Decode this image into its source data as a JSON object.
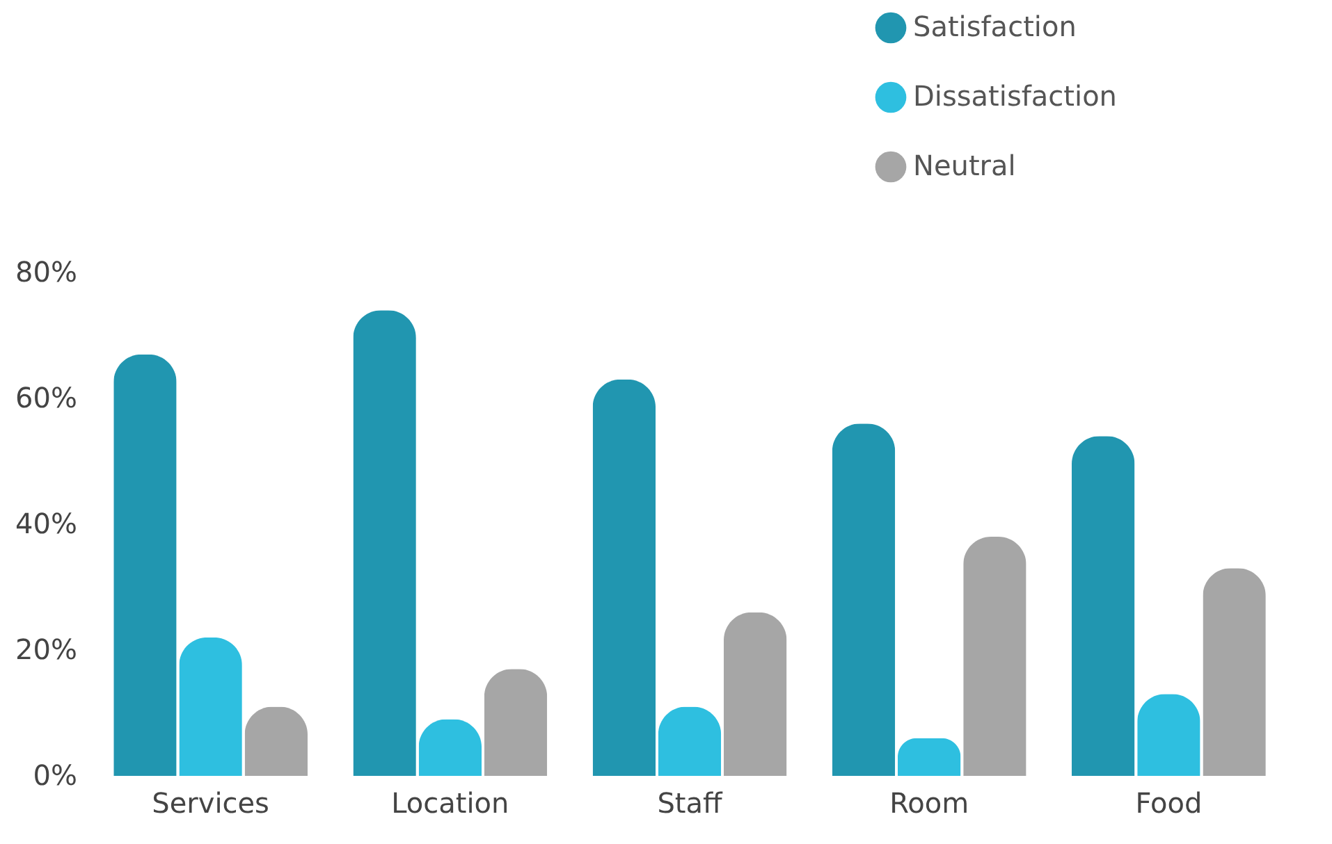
{
  "chart_data": {
    "type": "bar",
    "categories": [
      "Services",
      "Location",
      "Staff",
      "Room",
      "Food"
    ],
    "series": [
      {
        "name": "Satisfaction",
        "color": "#2196b0",
        "values": [
          67,
          74,
          63,
          56,
          54
        ]
      },
      {
        "name": "Dissatisfaction",
        "color": "#2ebfe0",
        "values": [
          22,
          9,
          11,
          6,
          13
        ]
      },
      {
        "name": "Neutral",
        "color": "#a6a6a6",
        "values": [
          11,
          17,
          26,
          38,
          33
        ]
      }
    ],
    "ylim": [
      0,
      80
    ],
    "yticks": [
      {
        "value": 0,
        "label": "0%"
      },
      {
        "value": 20,
        "label": "20%"
      },
      {
        "value": 40,
        "label": "40%"
      },
      {
        "value": 60,
        "label": "60%"
      },
      {
        "value": 80,
        "label": "80%"
      }
    ],
    "grid": false,
    "legend": "top right"
  }
}
